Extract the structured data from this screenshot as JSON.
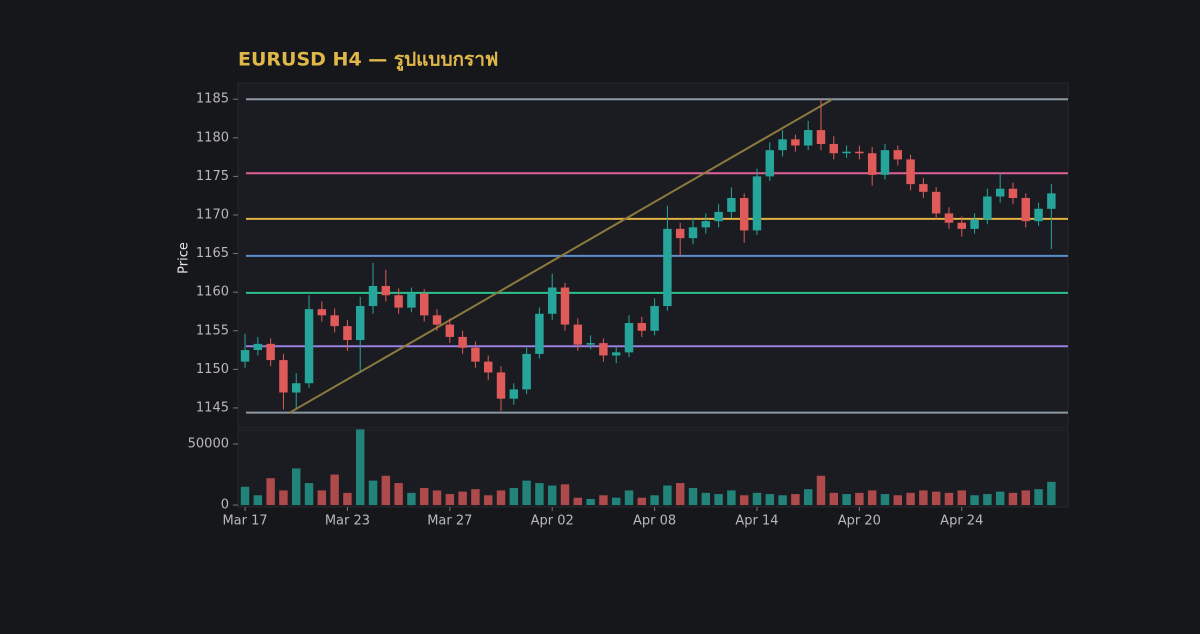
{
  "chart_data": {
    "type": "candlestick",
    "title": "EURUSD H4 — รูปแบบกราฟ",
    "y_label": "Price",
    "x": [
      0,
      1,
      2,
      3,
      4,
      5,
      6,
      7,
      8,
      9,
      10,
      11,
      12,
      13,
      14,
      15,
      16,
      17,
      18,
      19,
      20,
      21,
      22,
      23,
      24,
      25,
      26,
      27,
      28,
      29,
      30,
      31,
      32,
      33,
      34,
      35,
      36,
      37,
      38,
      39,
      40,
      41,
      42,
      43,
      44,
      45,
      46,
      47,
      48,
      49,
      50,
      51,
      52,
      53,
      54,
      55,
      56,
      57,
      58,
      59,
      60,
      61,
      62,
      63
    ],
    "open": [
      1151.0,
      1152.5,
      1153.3,
      1151.2,
      1147.0,
      1148.2,
      1157.8,
      1157.0,
      1155.6,
      1153.8,
      1158.2,
      1160.8,
      1159.6,
      1158.0,
      1159.8,
      1157.0,
      1155.8,
      1154.2,
      1152.8,
      1151.0,
      1149.6,
      1146.2,
      1147.4,
      1152.0,
      1157.2,
      1160.6,
      1155.8,
      1153.2,
      1153.4,
      1151.8,
      1152.2,
      1156.0,
      1155.0,
      1158.2,
      1168.2,
      1167.0,
      1168.4,
      1169.2,
      1170.4,
      1172.2,
      1168.0,
      1175.0,
      1178.4,
      1179.8,
      1179.0,
      1181.0,
      1179.2,
      1178.0,
      1178.2,
      1178.0,
      1175.2,
      1178.4,
      1177.2,
      1174.0,
      1173.0,
      1170.2,
      1169.0,
      1168.2,
      1169.4,
      1172.4,
      1173.4,
      1172.2,
      1169.2,
      1170.8
    ],
    "high": [
      1154.6,
      1154.2,
      1154.0,
      1152.0,
      1149.5,
      1159.6,
      1158.8,
      1157.9,
      1156.4,
      1159.4,
      1163.8,
      1162.9,
      1160.5,
      1160.6,
      1160.4,
      1157.8,
      1156.6,
      1155.0,
      1153.6,
      1151.8,
      1150.4,
      1148.2,
      1152.8,
      1158.0,
      1162.4,
      1161.2,
      1156.6,
      1154.4,
      1154.0,
      1153.0,
      1157.0,
      1156.8,
      1159.2,
      1171.2,
      1169.0,
      1169.6,
      1170.2,
      1171.4,
      1173.6,
      1172.8,
      1176.0,
      1179.4,
      1181.0,
      1180.4,
      1182.2,
      1185.0,
      1180.2,
      1179.0,
      1179.0,
      1178.8,
      1179.2,
      1179.0,
      1177.8,
      1174.8,
      1173.6,
      1171.0,
      1169.8,
      1170.2,
      1173.4,
      1175.4,
      1174.2,
      1172.8,
      1171.6,
      1174.0
    ],
    "low": [
      1150.2,
      1151.8,
      1150.4,
      1144.8,
      1145.0,
      1147.6,
      1156.2,
      1154.8,
      1152.4,
      1149.6,
      1157.2,
      1158.8,
      1157.2,
      1157.4,
      1156.2,
      1155.0,
      1153.4,
      1152.0,
      1150.2,
      1148.6,
      1144.6,
      1145.4,
      1146.8,
      1151.4,
      1156.4,
      1155.0,
      1152.4,
      1152.6,
      1151.0,
      1150.8,
      1151.6,
      1154.2,
      1154.4,
      1157.6,
      1164.6,
      1166.2,
      1167.6,
      1168.4,
      1169.6,
      1166.4,
      1167.4,
      1174.4,
      1177.6,
      1178.2,
      1178.4,
      1178.4,
      1177.2,
      1177.4,
      1177.2,
      1173.8,
      1174.6,
      1176.4,
      1173.2,
      1172.2,
      1169.4,
      1168.2,
      1167.2,
      1167.6,
      1168.8,
      1171.6,
      1171.4,
      1168.4,
      1168.6,
      1165.6
    ],
    "close": [
      1152.5,
      1153.3,
      1151.2,
      1147.0,
      1148.2,
      1157.8,
      1157.0,
      1155.6,
      1153.8,
      1158.2,
      1160.8,
      1159.6,
      1158.0,
      1159.8,
      1157.0,
      1155.8,
      1154.2,
      1152.8,
      1151.0,
      1149.6,
      1146.2,
      1147.4,
      1152.0,
      1157.2,
      1160.6,
      1155.8,
      1153.2,
      1153.4,
      1151.8,
      1152.2,
      1156.0,
      1155.0,
      1158.2,
      1168.2,
      1167.0,
      1168.4,
      1169.2,
      1170.4,
      1172.2,
      1168.0,
      1175.0,
      1178.4,
      1179.8,
      1179.0,
      1181.0,
      1179.2,
      1178.0,
      1178.2,
      1178.0,
      1175.2,
      1178.4,
      1177.2,
      1174.0,
      1173.0,
      1170.2,
      1169.0,
      1168.2,
      1169.4,
      1172.4,
      1173.4,
      1172.2,
      1169.2,
      1170.8,
      1172.8
    ],
    "up_color": "#26a69a",
    "down_color": "#e05a5a",
    "xlim": [
      -0.55,
      64.3
    ],
    "xticks": [
      {
        "value": 0,
        "label": "Mar 17"
      },
      {
        "value": 8,
        "label": "Mar 23"
      },
      {
        "value": 16,
        "label": "Mar 27"
      },
      {
        "value": 24,
        "label": "Apr 02"
      },
      {
        "value": 32,
        "label": "Apr 08"
      },
      {
        "value": 40,
        "label": "Apr 14"
      },
      {
        "value": 48,
        "label": "Apr 20"
      },
      {
        "value": 56,
        "label": "Apr 24"
      }
    ],
    "ylim": [
      1142.4,
      1187.1
    ],
    "yticks": [
      1145,
      1150,
      1155,
      1160,
      1165,
      1170,
      1175,
      1180,
      1185
    ],
    "levels": [
      {
        "value": 1185.0,
        "color": "#8c98a4"
      },
      {
        "value": 1175.4,
        "color": "#e0609a"
      },
      {
        "value": 1169.5,
        "color": "#e0b040"
      },
      {
        "value": 1164.7,
        "color": "#5b8fd0"
      },
      {
        "value": 1159.9,
        "color": "#2ec08a"
      },
      {
        "value": 1153.0,
        "color": "#9a7fe0"
      },
      {
        "value": 1144.4,
        "color": "#8c98a4"
      }
    ],
    "trendline": {
      "x": [
        3.5,
        45.9
      ],
      "y": [
        1144.4,
        1185.0
      ],
      "color": "#8a7a3e"
    },
    "volume": {
      "values": [
        15000,
        8000,
        22000,
        12000,
        30000,
        18000,
        12000,
        25000,
        10000,
        62000,
        20000,
        24000,
        18000,
        10000,
        14000,
        12000,
        9000,
        11000,
        13000,
        8000,
        12000,
        14000,
        20000,
        18000,
        16000,
        17000,
        6000,
        5000,
        8000,
        6000,
        12000,
        6000,
        8000,
        16000,
        18000,
        14000,
        10000,
        9000,
        12000,
        8000,
        10000,
        9000,
        8000,
        9000,
        13000,
        24000,
        10000,
        9000,
        10000,
        12000,
        9000,
        8000,
        10000,
        12000,
        11000,
        10000,
        12000,
        8000,
        9000,
        11000,
        10000,
        12000,
        13000,
        19000
      ],
      "ylim": [
        -1600,
        61500
      ],
      "yticks": [
        0,
        50000
      ]
    }
  }
}
